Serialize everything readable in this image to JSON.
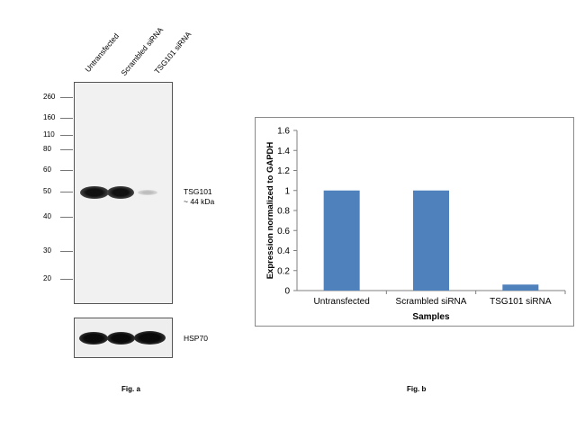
{
  "fig_a": {
    "lanes": [
      "Untransfected",
      "Scrambled siRNA",
      "TSG101 siRNA"
    ],
    "mw_markers": [
      "260",
      "160",
      "110",
      "80",
      "60",
      "50",
      "40",
      "30",
      "20"
    ],
    "target_label_line1": "TSG101",
    "target_label_line2": "~ 44 kDa",
    "control_label": "HSP70",
    "caption": "Fig. a"
  },
  "fig_b": {
    "caption": "Fig. b"
  },
  "chart_data": {
    "type": "bar",
    "categories": [
      "Untransfected",
      "Scrambled siRNA",
      "TSG101 siRNA"
    ],
    "values": [
      1,
      1,
      0.06
    ],
    "xlabel": "Samples",
    "ylabel": "Expression normalized to GAPDH",
    "ylim": [
      0,
      1.6
    ],
    "yticks": [
      "0",
      "0.2",
      "0.4",
      "0.6",
      "0.8",
      "1",
      "1.2",
      "1.4",
      "1.6"
    ],
    "bar_color": "#4f81bd",
    "grid": false,
    "legend": "none"
  }
}
